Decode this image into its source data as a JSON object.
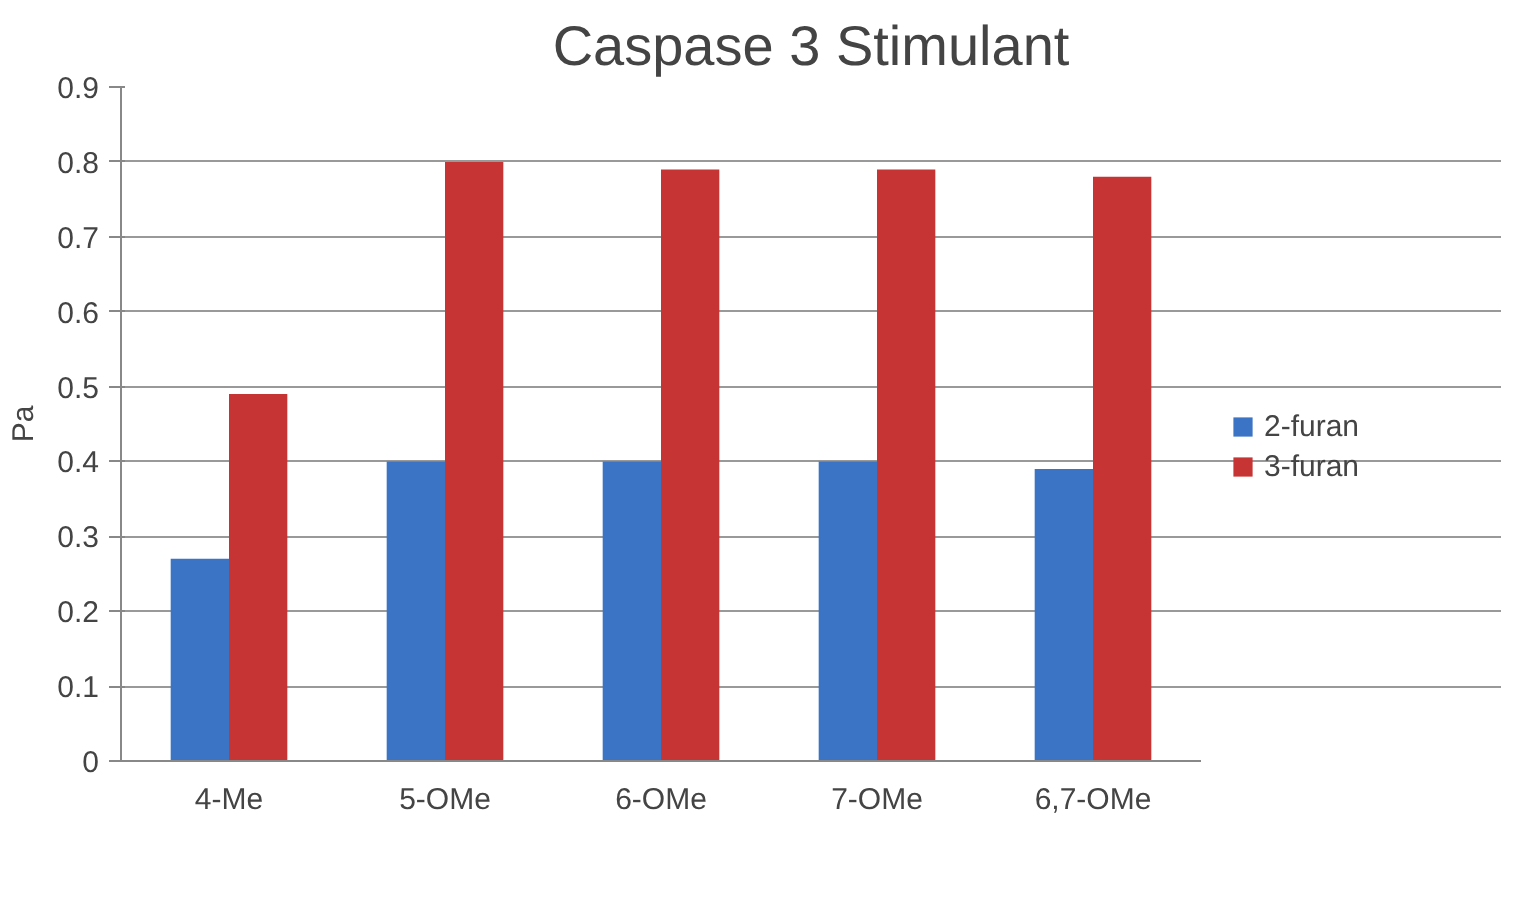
{
  "chart_data": {
    "type": "bar",
    "title": "Caspase 3 Stimulant",
    "ylabel": "Pa",
    "categories": [
      "4-Me",
      "5-OMe",
      "6-OMe",
      "7-OMe",
      "6,7-OMe"
    ],
    "series": [
      {
        "name": "2-furan",
        "color": "#3b74c4",
        "values": [
          0.27,
          0.4,
          0.4,
          0.4,
          0.39
        ]
      },
      {
        "name": "3-furan",
        "color": "#c73434",
        "values": [
          0.49,
          0.8,
          0.79,
          0.79,
          0.78
        ]
      }
    ],
    "ylim": [
      0,
      0.9
    ],
    "yticks": [
      0,
      0.1,
      0.2,
      0.3,
      0.4,
      0.5,
      0.6,
      0.7,
      0.8,
      0.9
    ],
    "grid": "y",
    "legend": "right"
  }
}
